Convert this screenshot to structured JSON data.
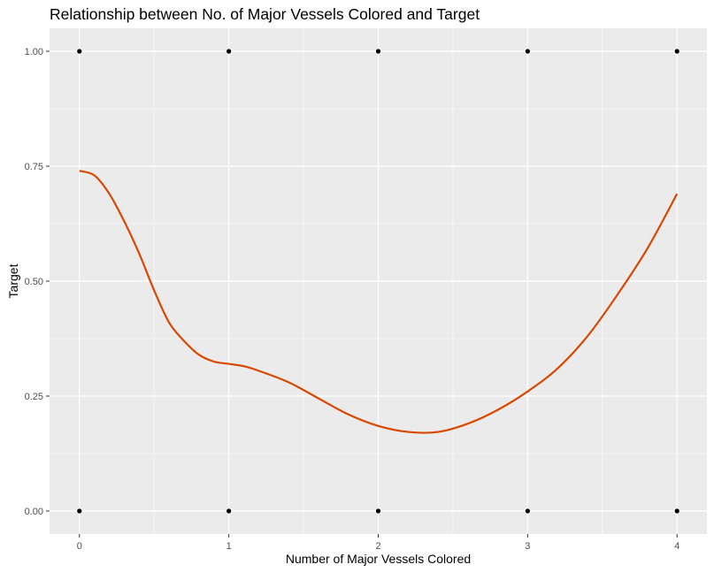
{
  "chart_data": {
    "type": "scatter",
    "title": "Relationship between No. of Major Vessels Colored and Target",
    "xlabel": "Number of Major Vessels Colored",
    "ylabel": "Target",
    "xlim": [
      -0.2,
      4.2
    ],
    "ylim": [
      -0.05,
      1.05
    ],
    "x_ticks": [
      0,
      1,
      2,
      3,
      4
    ],
    "x_tick_labels": [
      "0",
      "1",
      "2",
      "3",
      "4"
    ],
    "y_ticks": [
      0,
      0.25,
      0.5,
      0.75,
      1
    ],
    "y_tick_labels": [
      "0.00",
      "0.25",
      "0.50",
      "0.75",
      "1.00"
    ],
    "grid": true,
    "legend": "none",
    "colors": {
      "panel": "#ebebeb",
      "grid": "#ffffff",
      "points": "#000000",
      "smooth": "#d94801"
    },
    "points": [
      {
        "x": 0,
        "y": 1
      },
      {
        "x": 1,
        "y": 1
      },
      {
        "x": 2,
        "y": 1
      },
      {
        "x": 3,
        "y": 1
      },
      {
        "x": 4,
        "y": 1
      },
      {
        "x": 0,
        "y": 0
      },
      {
        "x": 1,
        "y": 0
      },
      {
        "x": 2,
        "y": 0
      },
      {
        "x": 3,
        "y": 0
      },
      {
        "x": 4,
        "y": 0
      }
    ],
    "smooth_line": {
      "x": [
        0,
        0.1,
        0.2,
        0.3,
        0.4,
        0.5,
        0.6,
        0.7,
        0.8,
        0.9,
        1.0,
        1.1,
        1.2,
        1.4,
        1.6,
        1.8,
        2.0,
        2.2,
        2.4,
        2.6,
        2.8,
        3.0,
        3.2,
        3.4,
        3.6,
        3.8,
        4.0
      ],
      "y": [
        0.74,
        0.73,
        0.69,
        0.63,
        0.56,
        0.48,
        0.41,
        0.37,
        0.34,
        0.325,
        0.32,
        0.315,
        0.305,
        0.28,
        0.245,
        0.21,
        0.185,
        0.172,
        0.172,
        0.19,
        0.22,
        0.26,
        0.31,
        0.38,
        0.47,
        0.57,
        0.69
      ]
    }
  }
}
